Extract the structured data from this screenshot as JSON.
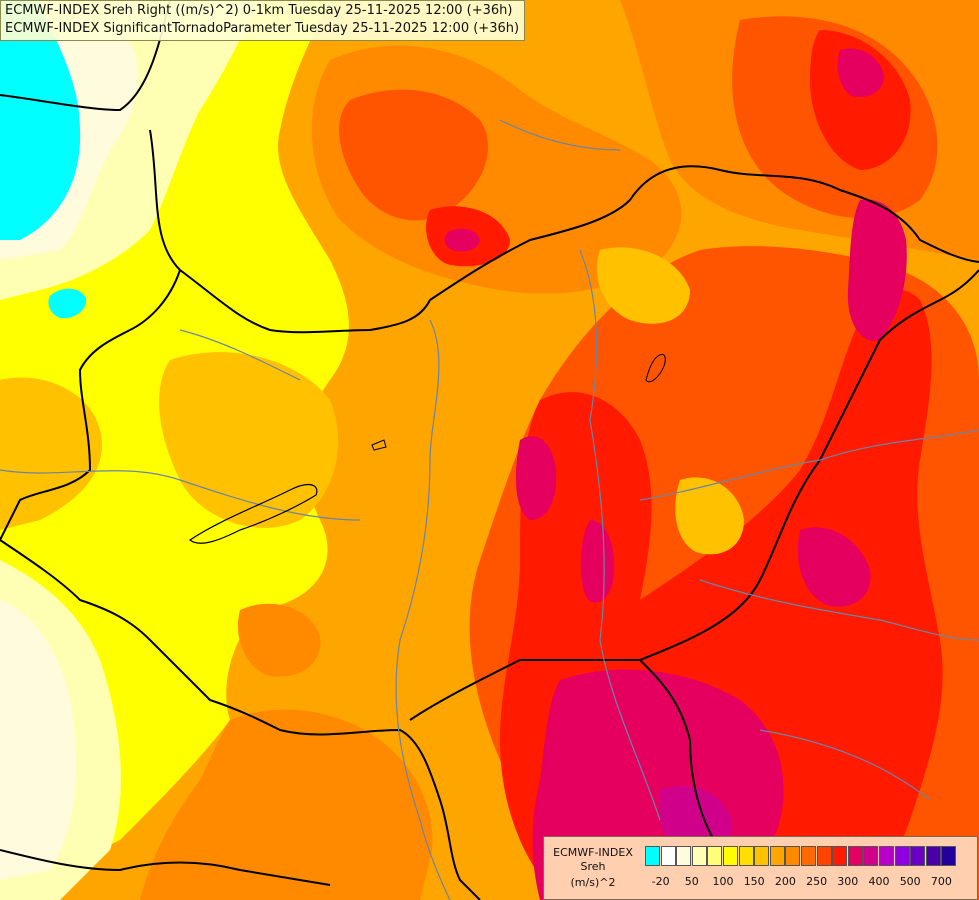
{
  "header": {
    "line1": "ECMWF-INDEX Sreh Right ((m/s)^2) 0-1km Tuesday 25-11-2025 12:00 (+36h)",
    "line2": "ECMWF-INDEX SignificantTornadoParameter Tuesday 25-11-2025 12:00 (+36h)"
  },
  "legend": {
    "source": "ECMWF-INDEX",
    "variable": "Sreh",
    "unit": "(m/s)^2",
    "colors": [
      "#00ffff",
      "#ffffff",
      "#fffbdc",
      "#ffffb4",
      "#ffff78",
      "#ffff00",
      "#ffdf00",
      "#ffc100",
      "#ffa500",
      "#ff8a00",
      "#ff6a00",
      "#ff4400",
      "#ff1a00",
      "#e5005f",
      "#d0008a",
      "#b800c8",
      "#8e00e0",
      "#6a00c8",
      "#4a00a8",
      "#22009a"
    ],
    "ticks": [
      "-20",
      "50",
      "100",
      "150",
      "200",
      "250",
      "300",
      "400",
      "500",
      "700"
    ]
  },
  "colors": {
    "yellow": "#ffff00",
    "yellow_pale": "#ffffb4",
    "cream": "#fffbdc",
    "orange_light": "#ffc100",
    "orange": "#ffa500",
    "orange_dark": "#ff8a00",
    "red_orange": "#ff5500",
    "red": "#ff1a00",
    "crimson": "#e5005f",
    "magenta": "#d0008a",
    "cyan": "#00ffff",
    "border": "#000000",
    "river": "#6a85a6"
  }
}
